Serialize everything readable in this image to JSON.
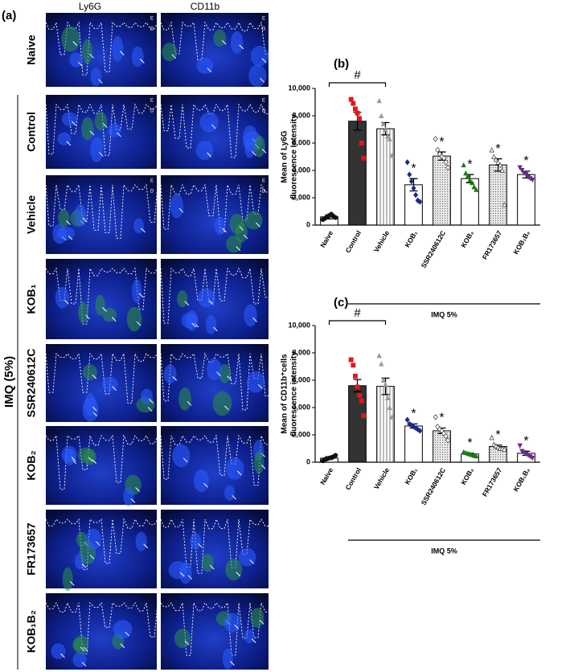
{
  "panel_a": {
    "label": "(a)",
    "columns": [
      "Ly6G",
      "CD11b"
    ],
    "rows": [
      "Naive",
      "Control",
      "Vehicle",
      "KOB₁",
      "SSR240612C",
      "KOB₂",
      "FR173657",
      "KOB₁B₂"
    ],
    "group_label": "IMQ (5%)",
    "layer_labels": [
      "E",
      "D"
    ]
  },
  "chart_data": [
    {
      "type": "bar",
      "panel_label": "(b)",
      "ylabel": [
        "Mean of Ly6G",
        "fluorescence Intensity"
      ],
      "categories": [
        "Naive",
        "Control",
        "Vehicle",
        "KOB₁",
        "SSR240612C",
        "KOB₂",
        "FR173657",
        "KOB₁B₂"
      ],
      "values": [
        600,
        7600,
        7050,
        2950,
        5050,
        3400,
        4400,
        3700
      ],
      "errors": [
        150,
        650,
        450,
        450,
        300,
        300,
        450,
        250
      ],
      "points": [
        [
          400,
          500,
          600,
          700,
          800,
          650,
          550
        ],
        [
          9200,
          8900,
          8500,
          8200,
          7800,
          6000,
          4900
        ],
        [
          9100,
          8000,
          7400,
          7000,
          6500,
          6300,
          5100
        ],
        [
          4600,
          3700,
          3200,
          2700,
          2200,
          1800,
          1700
        ],
        [
          6300,
          5500,
          5200,
          5000,
          4900,
          4600,
          4200
        ],
        [
          4400,
          3800,
          3600,
          3300,
          3100,
          2800,
          2600
        ],
        [
          5500,
          5000,
          4800,
          4600,
          4400,
          4000,
          1500
        ],
        [
          4200,
          4000,
          3800,
          3700,
          3500,
          3400,
          3300
        ]
      ],
      "fills": [
        "#ffffff",
        "#333333",
        "stripes",
        "#ffffff",
        "dots",
        "#ffffff",
        "dots",
        "#ffffff"
      ],
      "point_colors": [
        "#111111",
        "#e8141b",
        "#999999",
        "#1a2a8a",
        "#ffffff",
        "#1a7a1a",
        "#ffffff",
        "#6a2a8a"
      ],
      "markers": [
        "circle",
        "square",
        "triangle",
        "diamond",
        "diamond",
        "triangle",
        "triangle",
        "triangle-down"
      ],
      "annotations": [
        null,
        null,
        null,
        "*",
        "*",
        "*",
        "*",
        "*"
      ],
      "bracket_label": "#",
      "group_label": "IMQ 5%",
      "ylim": [
        0,
        10000
      ],
      "yticks": [
        0,
        {
          "value": 2000,
          "label": "2,000"
        },
        {
          "value": 4000,
          "label": "4,000"
        },
        {
          "value": 6000,
          "label": "6,000"
        },
        {
          "value": 8000,
          "label": "8,000"
        },
        {
          "value": 10000,
          "label": "10,000"
        }
      ]
    },
    {
      "type": "bar",
      "panel_label": "(c)",
      "ylabel": [
        "Mean of CD11b⁺cells",
        "fluorescence intensity"
      ],
      "categories": [
        "Naive",
        "Control",
        "Vehicle",
        "KOB₁",
        "SSR240612C",
        "KOB₂",
        "FR173657",
        "KOB₁B₂"
      ],
      "values": [
        300,
        5600,
        5550,
        2650,
        2300,
        600,
        1150,
        650
      ],
      "errors": [
        100,
        450,
        600,
        150,
        200,
        50,
        100,
        150
      ],
      "points": [
        [
          100,
          200,
          250,
          300,
          350,
          400,
          500
        ],
        [
          7500,
          7100,
          6300,
          5500,
          4900,
          4500,
          3400
        ],
        [
          7800,
          7200,
          6000,
          5700,
          4700,
          4000,
          3300
        ],
        [
          3100,
          2800,
          2700,
          2600,
          2500,
          2400,
          2300
        ],
        [
          3300,
          2600,
          2400,
          2300,
          2100,
          1900,
          1600
        ],
        [
          750,
          700,
          650,
          600,
          550,
          500,
          450
        ],
        [
          1800,
          1300,
          1200,
          1100,
          1000,
          1000,
          950
        ],
        [
          1200,
          800,
          700,
          600,
          500,
          400,
          300
        ]
      ],
      "fills": [
        "#ffffff",
        "#333333",
        "stripes",
        "#ffffff",
        "dots",
        "#ffffff",
        "dots",
        "#ffffff"
      ],
      "point_colors": [
        "#111111",
        "#e8141b",
        "#999999",
        "#1a2a8a",
        "#ffffff",
        "#1a7a1a",
        "#ffffff",
        "#6a2a8a"
      ],
      "markers": [
        "circle",
        "square",
        "triangle",
        "diamond",
        "diamond",
        "triangle",
        "triangle",
        "triangle-down"
      ],
      "annotations": [
        null,
        null,
        null,
        "*",
        "*",
        "*",
        "*",
        "*"
      ],
      "bracket_label": "#",
      "group_label": "IMQ 5%",
      "ylim": [
        0,
        10000
      ],
      "yticks": [
        0,
        {
          "value": 2000,
          "label": "2,000"
        },
        {
          "value": 4000,
          "label": "4,000"
        },
        {
          "value": 6000,
          "label": "6,000"
        },
        {
          "value": 8000,
          "label": "8,000"
        },
        {
          "value": 10000,
          "label": "10,000"
        }
      ]
    }
  ]
}
